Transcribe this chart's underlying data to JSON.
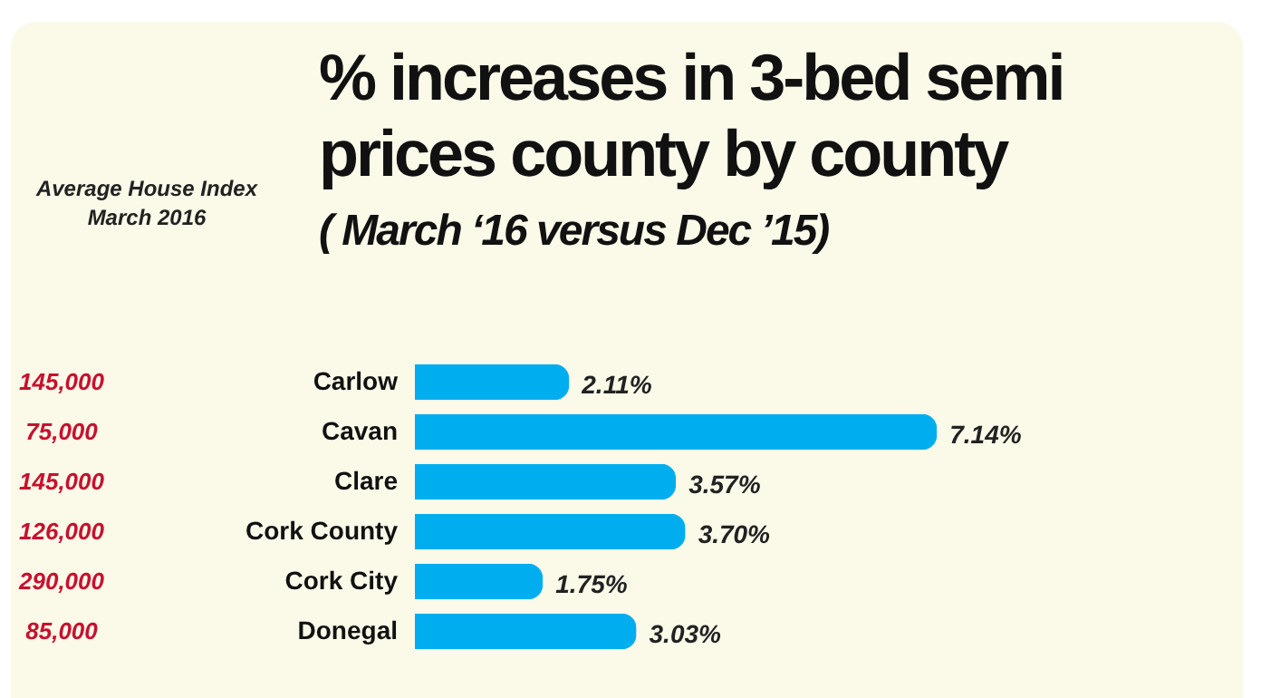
{
  "chart_data": {
    "type": "bar",
    "orientation": "horizontal",
    "title": "% increases  in 3-bed semi prices county by county",
    "subtitle": "( March ‘16 versus Dec ’15)",
    "categories": [
      "Carlow",
      "Cavan",
      "Clare",
      "Cork County",
      "Cork City",
      "Donegal"
    ],
    "values": [
      2.11,
      7.14,
      3.57,
      3.7,
      1.75,
      3.03
    ],
    "value_labels": [
      "2.11%",
      "7.14%",
      "3.57%",
      "3.70%",
      "1.75%",
      "3.03%"
    ],
    "color": "#00aeef",
    "tick_labels": "y",
    "annotations": [
      "Average House Index March 2016",
      "145,000",
      "75,000",
      "145,000",
      "126,000",
      "290,000",
      "85,000"
    ]
  }
}
